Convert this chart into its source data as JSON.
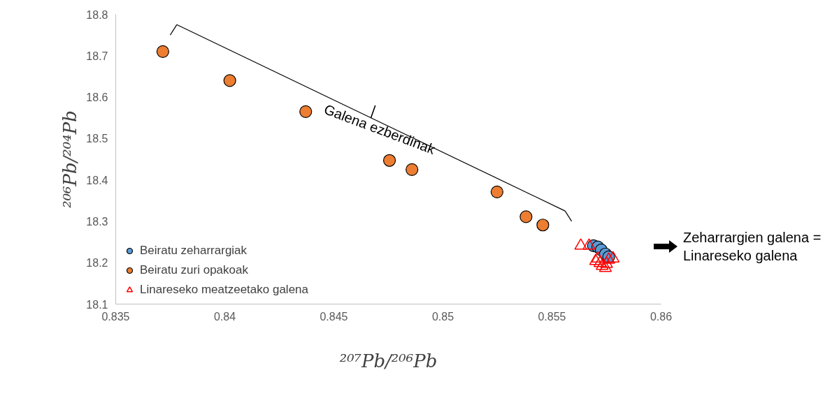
{
  "chart_data": {
    "type": "scatter",
    "xlabel": "²⁰⁷Pb/²⁰⁶Pb",
    "ylabel": "²⁰⁶Pb/²⁰⁴Pb",
    "xlim": [
      0.835,
      0.86
    ],
    "xticks": [
      0.835,
      0.84,
      0.845,
      0.85,
      0.855,
      0.86
    ],
    "ylim": [
      18.1,
      18.8
    ],
    "yticks": [
      18.1,
      18.2,
      18.3,
      18.4,
      18.5,
      18.6,
      18.7,
      18.8
    ],
    "grid": false,
    "legend": "bottom left",
    "series": [
      {
        "name": "Beiratu zeharrargiak",
        "color": "#5b9bd5",
        "marker": "circle",
        "x": [
          0.8569,
          0.8571,
          0.85726,
          0.85745,
          0.8576
        ],
        "values": [
          18.241,
          18.238,
          18.231,
          18.221,
          18.214
        ]
      },
      {
        "name": "Beiratu zuri opakoak",
        "color": "#ed7d31",
        "marker": "circle",
        "x": [
          0.83716,
          0.84023,
          0.84371,
          0.84755,
          0.84858,
          0.85248,
          0.85381,
          0.85458
        ],
        "values": [
          18.71,
          18.64,
          18.565,
          18.447,
          18.425,
          18.371,
          18.311,
          18.291
        ]
      },
      {
        "name": "Linareseko meatzeetako galena",
        "color": "#ff0000",
        "marker": "triangle",
        "x": [
          0.85632,
          0.8567,
          0.857,
          0.8572,
          0.8573,
          0.8575,
          0.8576,
          0.8578,
          0.85745,
          0.8571
        ],
        "values": [
          18.241,
          18.241,
          18.204,
          18.199,
          18.192,
          18.197,
          18.207,
          18.21,
          18.187,
          18.21
        ]
      }
    ],
    "annotations": [
      "Galena ezberdinak",
      "Zeharrargien galena = Linareseko galena"
    ]
  }
}
